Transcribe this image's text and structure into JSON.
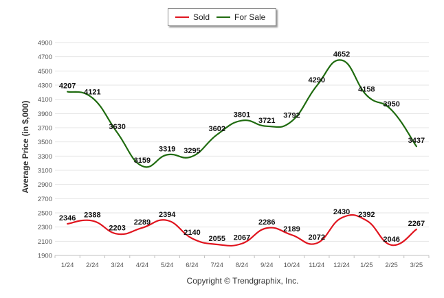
{
  "chart_data": {
    "type": "line",
    "title": "",
    "ylabel": "Average Price (in $,000)",
    "xlabel": "",
    "ylim": [
      1900,
      4900
    ],
    "yticks": [
      1900,
      2100,
      2300,
      2500,
      2700,
      2900,
      3100,
      3300,
      3500,
      3700,
      3900,
      4100,
      4300,
      4500,
      4700,
      4900
    ],
    "grid": true,
    "legend_position": "top-center",
    "categories": [
      "1/24",
      "2/24",
      "3/24",
      "4/24",
      "5/24",
      "6/24",
      "7/24",
      "8/24",
      "9/24",
      "10/24",
      "11/24",
      "12/24",
      "1/25",
      "2/25",
      "3/25"
    ],
    "series": [
      {
        "name": "Sold",
        "color": "#e0141e",
        "values": [
          2346,
          2388,
          2203,
          2289,
          2394,
          2140,
          2055,
          2067,
          2286,
          2189,
          2072,
          2430,
          2392,
          2046,
          2267
        ]
      },
      {
        "name": "For Sale",
        "color": "#1f6b0f",
        "values": [
          4207,
          4121,
          3630,
          3159,
          3319,
          3295,
          3602,
          3801,
          3721,
          3792,
          4290,
          4652,
          4158,
          3950,
          3437
        ]
      }
    ],
    "footer": "Copyright © Trendgraphix, Inc."
  }
}
